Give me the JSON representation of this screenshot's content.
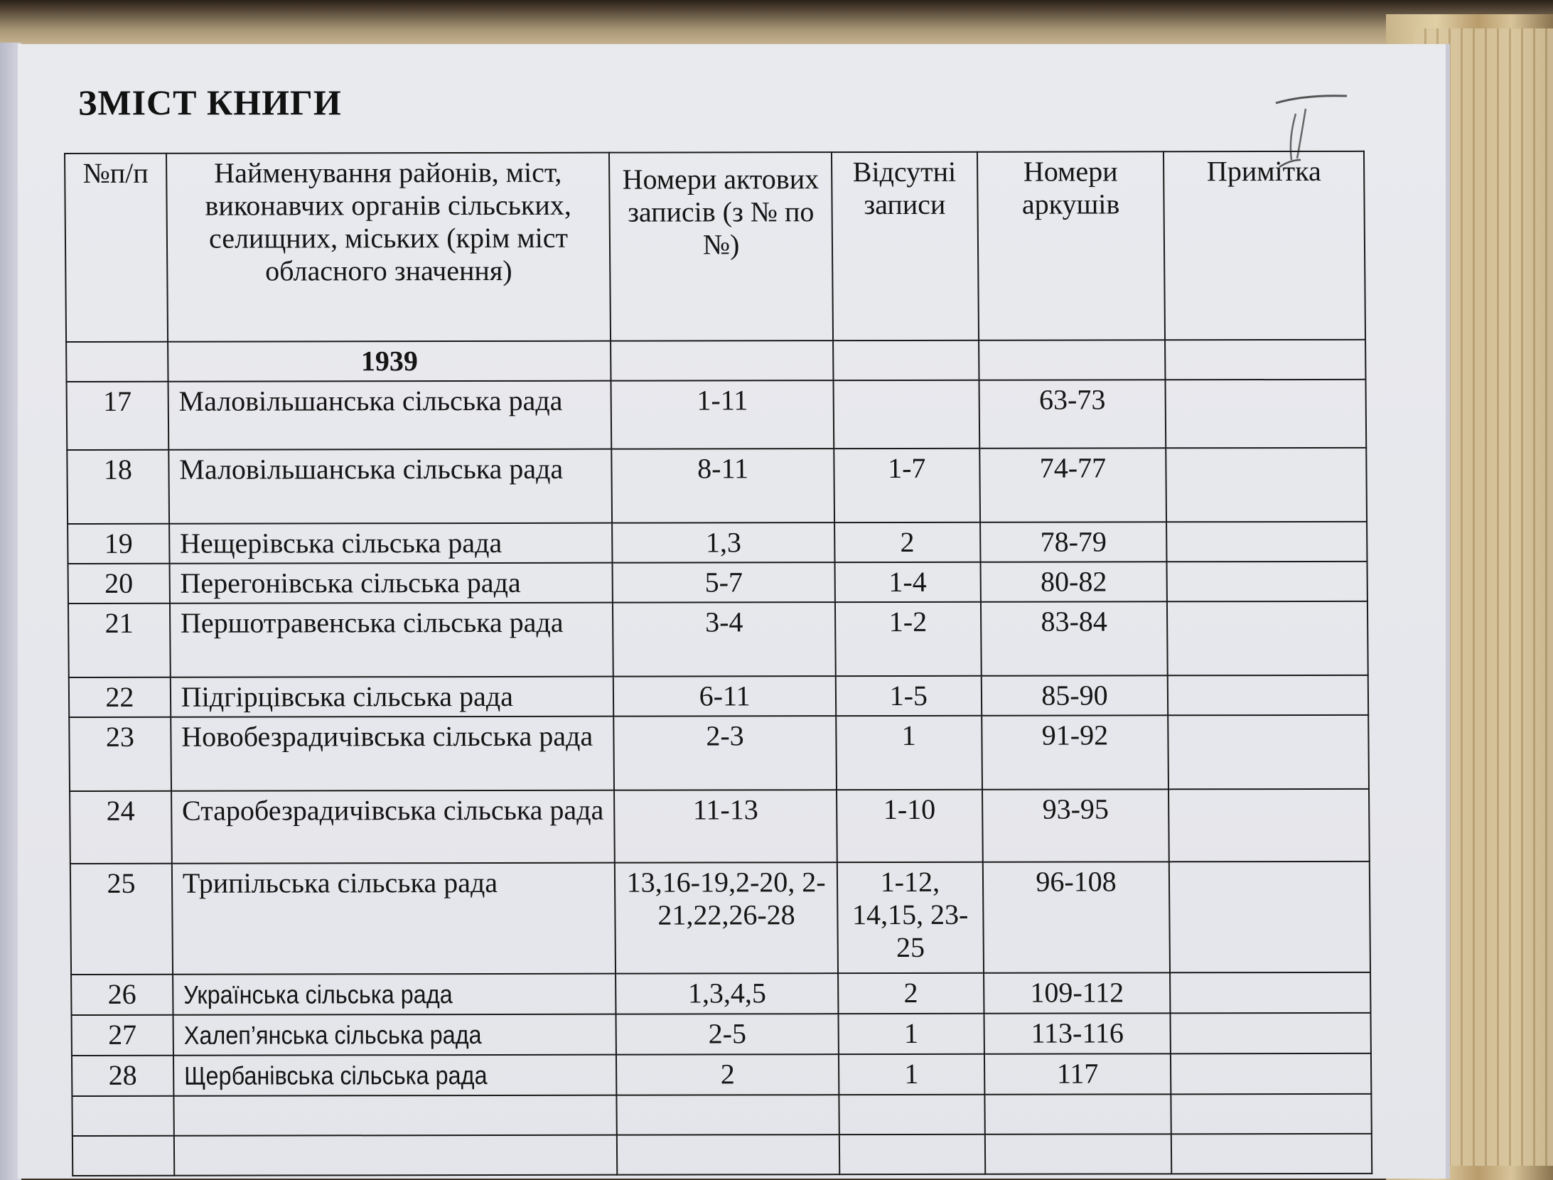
{
  "title": "ЗМІСТ КНИГИ",
  "handwritten_mark": "II",
  "table": {
    "headers": [
      "№п/п",
      "Найменування районів, міст, виконавчих органів сільських, селищних, міських (крім міст обласного значення)",
      "Номери актових записів (з № по №)",
      "Відсутні записи",
      "Номери аркушів",
      "Примітка"
    ],
    "year": "1939",
    "rows": [
      {
        "n": "17",
        "name": "Маловільшанська сільська рада",
        "records": "1-11",
        "missing": "",
        "sheets": "63-73",
        "note": ""
      },
      {
        "n": "18",
        "name": "Маловільшанська сільська рада",
        "records": "8-11",
        "missing": "1-7",
        "sheets": "74-77",
        "note": ""
      },
      {
        "n": "19",
        "name": "Нещерівська  сільська рада",
        "records": "1,3",
        "missing": "2",
        "sheets": "78-79",
        "note": ""
      },
      {
        "n": "20",
        "name": "Перегонівська сільська рада",
        "records": "5-7",
        "missing": "1-4",
        "sheets": "80-82",
        "note": ""
      },
      {
        "n": "21",
        "name": "Першотравенська сільська рада",
        "records": "3-4",
        "missing": "1-2",
        "sheets": "83-84",
        "note": ""
      },
      {
        "n": "22",
        "name": "Підгірцівська сільська рада",
        "records": "6-11",
        "missing": "1-5",
        "sheets": "85-90",
        "note": ""
      },
      {
        "n": "23",
        "name": "Новобезрадичівська сільська рада",
        "records": "2-3",
        "missing": "1",
        "sheets": "91-92",
        "note": ""
      },
      {
        "n": "24",
        "name": "Старобезрадичівська сільська рада",
        "records": "11-13",
        "missing": "1-10",
        "sheets": "93-95",
        "note": ""
      },
      {
        "n": "25",
        "name": "Трипільська сільська рада",
        "records": "13,16-19,2-20, 2-21,22,26-28",
        "missing": "1-12, 14,15, 23-25",
        "sheets": "96-108",
        "note": ""
      },
      {
        "n": "26",
        "name": "Українська  сільська рада",
        "records": "1,3,4,5",
        "missing": "2",
        "sheets": "109-112",
        "note": ""
      },
      {
        "n": "27",
        "name": "Халеп’янська  сільська рада",
        "records": "2-5",
        "missing": "1",
        "sheets": "113-116",
        "note": ""
      },
      {
        "n": "28",
        "name": "Щербанівська  сільська рада",
        "records": "2",
        "missing": "1",
        "sheets": "117",
        "note": ""
      }
    ]
  }
}
